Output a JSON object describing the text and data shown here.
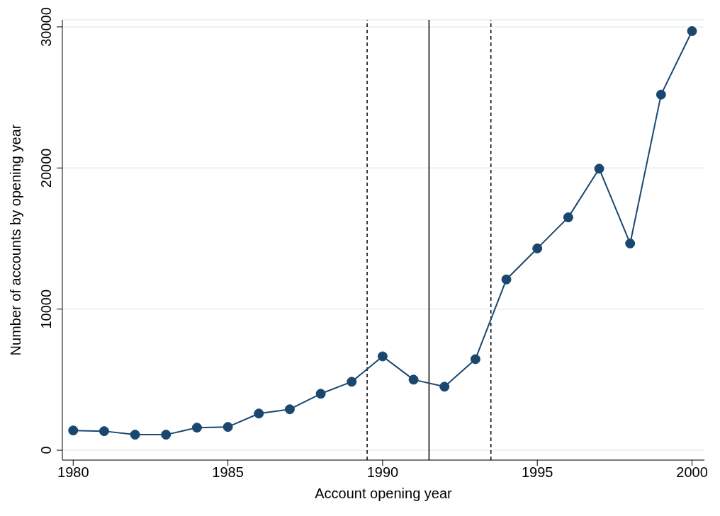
{
  "chart_data": {
    "type": "line",
    "xlabel": "Account opening year",
    "ylabel": "Number of accounts by opening year",
    "x": [
      1980,
      1981,
      1982,
      1983,
      1984,
      1985,
      1986,
      1987,
      1988,
      1989,
      1990,
      1991,
      1992,
      1993,
      1994,
      1995,
      1996,
      1997,
      1998,
      1999,
      2000
    ],
    "series": [
      {
        "color": "#1a476f",
        "values": [
          1400,
          1350,
          1100,
          1100,
          1600,
          1650,
          2600,
          2900,
          4000,
          4850,
          6650,
          5000,
          4500,
          6450,
          12100,
          14300,
          16500,
          19950,
          14650,
          25200,
          29700
        ]
      }
    ],
    "xlim": [
      1979.65,
      2000.4
    ],
    "xticks": [
      1980,
      1985,
      1990,
      1995,
      2000
    ],
    "ylim": [
      -700,
      30500
    ],
    "yticks": [
      0,
      10000,
      20000,
      30000
    ],
    "grid": "y",
    "marker": "circle",
    "line_style": "solid",
    "legend": false,
    "ref_lines": [
      {
        "axis": "x",
        "value": 1989.5,
        "line_style": "dashed",
        "color": "#000000"
      },
      {
        "axis": "x",
        "value": 1991.5,
        "line_style": "solid",
        "color": "#000000"
      },
      {
        "axis": "x",
        "value": 1993.5,
        "line_style": "dashed",
        "color": "#000000"
      }
    ]
  }
}
